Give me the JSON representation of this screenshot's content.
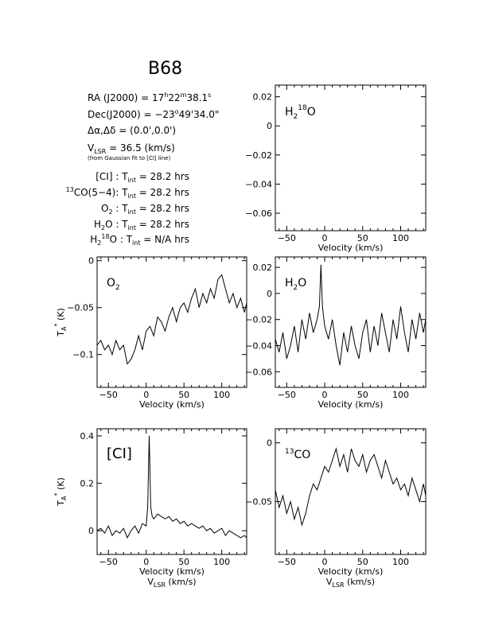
{
  "header": {
    "title": "B68",
    "ra": "RA (J2000) = 17h22m38.1s",
    "dec": "Dec(J2000) = −23°49'34.0\"",
    "offset": "Δα,Δδ = (0.0',0.0')",
    "vlsr": "VLSR = 36.5 (km/s)",
    "vlsr_note": "(from Gaussian fit to [CI] line)",
    "integrations": [
      "[CI] : Tint = 28.2 hrs",
      "13CO(5−4): Tint = 28.2 hrs",
      "O2 : Tint = 28.2 hrs",
      "H2O : Tint = 28.2 hrs",
      "H218O : Tint = N/A hrs"
    ]
  },
  "labels": {
    "velocity": "Velocity (km/s)",
    "vlsr_axis": "VLSR (km/s)",
    "ta_axis": "TA* (K)"
  },
  "chart_data": [
    {
      "id": "h218o",
      "type": "line",
      "label": "H218O",
      "xlabel": "Velocity (km/s)",
      "ylabel": "",
      "xlim": [
        -65,
        133
      ],
      "ylim": [
        -0.072,
        0.028
      ],
      "xticks": [
        -50,
        0,
        50,
        100
      ],
      "yticks": [
        0.02,
        0,
        -0.02,
        -0.04,
        -0.06
      ],
      "ytick_labels": [
        "0.02",
        "0",
        "−0.02",
        "−0.04",
        "−0.06"
      ],
      "series": []
    },
    {
      "id": "o2",
      "type": "line",
      "label": "O2",
      "xlabel": "Velocity (km/s)",
      "ylabel": "TA* (K)",
      "xlim": [
        -65,
        133
      ],
      "ylim": [
        -0.135,
        0.004
      ],
      "xticks": [
        -50,
        0,
        50,
        100
      ],
      "yticks": [
        0,
        -0.05,
        -0.1
      ],
      "ytick_labels": [
        "0",
        "−0.05",
        "−0.1"
      ],
      "series": [
        {
          "x": [
            -65,
            -60,
            -55,
            -50,
            -45,
            -40,
            -35,
            -30,
            -25,
            -20,
            -15,
            -10,
            -5,
            0,
            5,
            10,
            15,
            20,
            25,
            30,
            35,
            40,
            45,
            50,
            55,
            60,
            65,
            70,
            75,
            80,
            85,
            90,
            95,
            100,
            105,
            110,
            115,
            120,
            125,
            130,
            133
          ],
          "y": [
            -0.09,
            -0.085,
            -0.095,
            -0.09,
            -0.1,
            -0.085,
            -0.095,
            -0.09,
            -0.11,
            -0.105,
            -0.095,
            -0.08,
            -0.095,
            -0.075,
            -0.07,
            -0.08,
            -0.06,
            -0.065,
            -0.075,
            -0.06,
            -0.05,
            -0.065,
            -0.05,
            -0.045,
            -0.055,
            -0.04,
            -0.03,
            -0.05,
            -0.035,
            -0.045,
            -0.03,
            -0.04,
            -0.02,
            -0.015,
            -0.03,
            -0.045,
            -0.035,
            -0.05,
            -0.04,
            -0.055,
            -0.045
          ]
        }
      ]
    },
    {
      "id": "h2o",
      "type": "line",
      "label": "H2O",
      "xlabel": "Velocity (km/s)",
      "ylabel": "",
      "xlim": [
        -65,
        133
      ],
      "ylim": [
        -0.072,
        0.028
      ],
      "xticks": [
        -50,
        0,
        50,
        100
      ],
      "yticks": [
        0.02,
        0,
        -0.02,
        -0.04,
        -0.06
      ],
      "ytick_labels": [
        "0.02",
        "0",
        "−0.02",
        "−0.04",
        "−0.06"
      ],
      "series": [
        {
          "x": [
            -65,
            -60,
            -55,
            -50,
            -45,
            -40,
            -35,
            -30,
            -25,
            -20,
            -15,
            -10,
            -7,
            -5,
            -3,
            0,
            5,
            10,
            15,
            20,
            25,
            30,
            35,
            40,
            45,
            50,
            55,
            60,
            65,
            70,
            75,
            80,
            85,
            90,
            95,
            100,
            105,
            110,
            115,
            120,
            125,
            130,
            133
          ],
          "y": [
            -0.035,
            -0.045,
            -0.03,
            -0.05,
            -0.04,
            -0.025,
            -0.045,
            -0.02,
            -0.035,
            -0.015,
            -0.03,
            -0.02,
            -0.01,
            0.022,
            -0.01,
            -0.025,
            -0.035,
            -0.02,
            -0.04,
            -0.055,
            -0.03,
            -0.045,
            -0.025,
            -0.04,
            -0.05,
            -0.03,
            -0.02,
            -0.045,
            -0.025,
            -0.04,
            -0.015,
            -0.03,
            -0.045,
            -0.02,
            -0.035,
            -0.01,
            -0.03,
            -0.045,
            -0.02,
            -0.035,
            -0.015,
            -0.03,
            -0.02
          ]
        }
      ]
    },
    {
      "id": "ci",
      "type": "line",
      "label": "[CI]",
      "xlabel": "Velocity (km/s)",
      "ylabel": "TA* (K)",
      "xlim": [
        -65,
        133
      ],
      "ylim": [
        -0.1,
        0.43
      ],
      "xticks": [
        -50,
        0,
        50,
        100
      ],
      "yticks": [
        0.4,
        0.2,
        0
      ],
      "ytick_labels": [
        "0.4",
        "0.2",
        "0"
      ],
      "series": [
        {
          "x": [
            -65,
            -60,
            -55,
            -50,
            -45,
            -40,
            -35,
            -30,
            -25,
            -20,
            -15,
            -10,
            -5,
            0,
            2,
            4,
            6,
            8,
            10,
            15,
            20,
            25,
            30,
            35,
            40,
            45,
            50,
            55,
            60,
            65,
            70,
            75,
            80,
            85,
            90,
            95,
            100,
            105,
            110,
            115,
            120,
            125,
            130,
            133
          ],
          "y": [
            0.0,
            0.01,
            -0.01,
            0.02,
            -0.02,
            0.0,
            -0.01,
            0.01,
            -0.03,
            0.0,
            0.02,
            -0.01,
            0.03,
            0.02,
            0.1,
            0.4,
            0.1,
            0.06,
            0.05,
            0.07,
            0.06,
            0.05,
            0.06,
            0.04,
            0.05,
            0.03,
            0.04,
            0.02,
            0.03,
            0.02,
            0.01,
            0.02,
            0.0,
            0.01,
            -0.01,
            0.0,
            0.01,
            -0.02,
            0.0,
            -0.01,
            -0.02,
            -0.03,
            -0.02,
            -0.03
          ]
        }
      ]
    },
    {
      "id": "13co",
      "type": "line",
      "label": "13CO",
      "xlabel": "Velocity (km/s)",
      "ylabel": "",
      "xlim": [
        -65,
        133
      ],
      "ylim": [
        -0.095,
        0.012
      ],
      "xticks": [
        -50,
        0,
        50,
        100
      ],
      "yticks": [
        0,
        -0.05
      ],
      "ytick_labels": [
        "0",
        "−0.05"
      ],
      "series": [
        {
          "x": [
            -65,
            -60,
            -55,
            -50,
            -45,
            -40,
            -35,
            -30,
            -25,
            -20,
            -15,
            -10,
            -5,
            0,
            5,
            10,
            15,
            20,
            25,
            30,
            35,
            40,
            45,
            50,
            55,
            60,
            65,
            70,
            75,
            80,
            85,
            90,
            95,
            100,
            105,
            110,
            115,
            120,
            125,
            130,
            133
          ],
          "y": [
            -0.04,
            -0.055,
            -0.045,
            -0.06,
            -0.05,
            -0.065,
            -0.055,
            -0.07,
            -0.06,
            -0.045,
            -0.035,
            -0.04,
            -0.03,
            -0.02,
            -0.025,
            -0.015,
            -0.005,
            -0.02,
            -0.01,
            -0.025,
            -0.005,
            -0.015,
            -0.02,
            -0.01,
            -0.025,
            -0.015,
            -0.01,
            -0.02,
            -0.03,
            -0.015,
            -0.025,
            -0.035,
            -0.03,
            -0.04,
            -0.035,
            -0.045,
            -0.03,
            -0.04,
            -0.05,
            -0.035,
            -0.045
          ]
        }
      ]
    }
  ]
}
